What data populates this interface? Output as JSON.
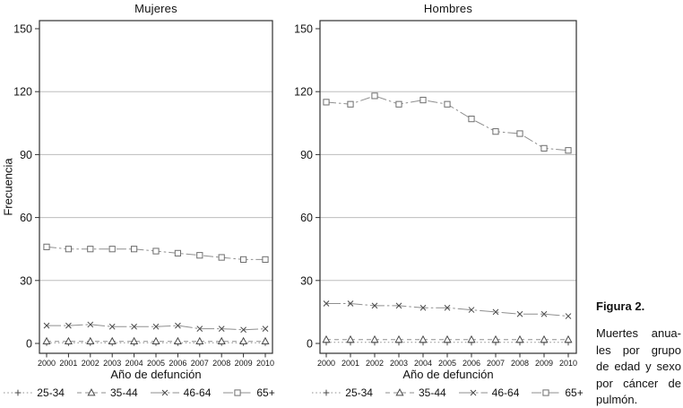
{
  "figure": {
    "caption_title": "Figura 2.",
    "caption_lines": [
      "Muertes anua-",
      "les por grupo",
      "de edad y sexo",
      "por cáncer de",
      "pulmón."
    ],
    "caption_full_text": "Muertes anuales por grupo de edad y sexo por cáncer de pulmón."
  },
  "colors": {
    "line": "#8f8f8f",
    "marker": "#4a4a4a",
    "marker_square": "#6e6e6e",
    "grid": "#bdbdbd",
    "frame": "#2f2f2f",
    "text": "#161616",
    "background": "#ffffff"
  },
  "chart_data": [
    {
      "type": "line",
      "title": "Mujeres",
      "xlabel": "Año de defunción",
      "ylabel": "Frecuencia",
      "x": [
        2000,
        2001,
        2002,
        2003,
        2004,
        2005,
        2006,
        2007,
        2008,
        2009,
        2010
      ],
      "ylim": [
        0,
        150
      ],
      "yticks": [
        0,
        30,
        60,
        90,
        120,
        150
      ],
      "gridlines": [
        30,
        60,
        90,
        120
      ],
      "grid": "horizontal",
      "legend_position": "bottom",
      "series": [
        {
          "name": "25-34",
          "marker": "plus",
          "linestyle": "dotted",
          "values": [
            0.3,
            0.3,
            0.3,
            0.3,
            0.3,
            0.3,
            0.3,
            0.3,
            0.3,
            0.3,
            0.3
          ]
        },
        {
          "name": "35-44",
          "marker": "triangle",
          "linestyle": "dashed",
          "values": [
            1,
            1,
            1,
            1,
            1,
            1,
            1,
            1,
            1,
            1,
            1
          ]
        },
        {
          "name": "46-64",
          "marker": "x",
          "linestyle": "longdashdot",
          "values": [
            8.5,
            8.5,
            9,
            8,
            8,
            8,
            8.5,
            7,
            7,
            6.5,
            7
          ]
        },
        {
          "name": "65+",
          "marker": "square",
          "linestyle": "dashdot",
          "values": [
            46,
            45,
            45,
            45,
            45,
            44,
            43,
            42,
            41,
            40,
            40
          ]
        }
      ]
    },
    {
      "type": "line",
      "title": "Hombres",
      "xlabel": "Año de defunción",
      "ylabel": "",
      "x": [
        2000,
        2001,
        2002,
        2003,
        2004,
        2005,
        2006,
        2007,
        2008,
        2009,
        2010
      ],
      "ylim": [
        0,
        150
      ],
      "yticks": [
        0,
        30,
        60,
        90,
        120,
        150
      ],
      "gridlines": [
        30,
        60,
        90,
        120
      ],
      "grid": "horizontal",
      "legend_position": "bottom",
      "series": [
        {
          "name": "25-34",
          "marker": "plus",
          "linestyle": "dotted",
          "values": [
            0.5,
            0.5,
            0.5,
            0.5,
            0.5,
            0.5,
            0.5,
            0.5,
            0.5,
            0.5,
            0.5
          ]
        },
        {
          "name": "35-44",
          "marker": "triangle",
          "linestyle": "dashed",
          "values": [
            1.8,
            1.8,
            1.8,
            1.8,
            1.8,
            1.8,
            1.8,
            1.8,
            1.8,
            1.8,
            1.8
          ]
        },
        {
          "name": "46-64",
          "marker": "x",
          "linestyle": "longdashdot",
          "values": [
            19,
            19,
            18,
            18,
            17,
            17,
            16,
            15,
            14,
            14,
            13
          ]
        },
        {
          "name": "65+",
          "marker": "square",
          "linestyle": "dashdot",
          "values": [
            115,
            114,
            118,
            114,
            116,
            114,
            107,
            101,
            100,
            93,
            92
          ]
        }
      ]
    }
  ]
}
